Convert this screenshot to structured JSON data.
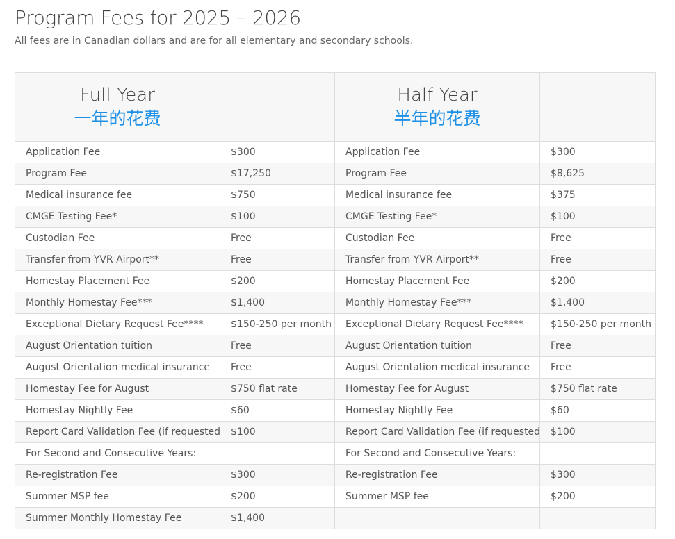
{
  "page": {
    "title": "Program Fees for 2025 – 2026",
    "subtitle": "All fees are in Canadian dollars and are for all elementary and secondary schools."
  },
  "table": {
    "full_year": {
      "title_en": "Full Year",
      "title_zh": "一年的花费"
    },
    "half_year": {
      "title_en": "Half Year",
      "title_zh": "半年的花费"
    },
    "rows": [
      {
        "full_item": "Application Fee",
        "full_amount": "$300",
        "half_item": "Application Fee",
        "half_amount": "$300"
      },
      {
        "full_item": "Program Fee",
        "full_amount": "$17,250",
        "half_item": "Program Fee",
        "half_amount": "$8,625"
      },
      {
        "full_item": "Medical insurance fee",
        "full_amount": "$750",
        "half_item": "Medical insurance fee",
        "half_amount": "$375"
      },
      {
        "full_item": "CMGE Testing Fee*",
        "full_amount": "$100",
        "half_item": "CMGE Testing Fee*",
        "half_amount": "$100"
      },
      {
        "full_item": "Custodian Fee",
        "full_amount": "Free",
        "half_item": "Custodian Fee",
        "half_amount": "Free"
      },
      {
        "full_item": "Transfer from YVR Airport**",
        "full_amount": "Free",
        "half_item": "Transfer from YVR Airport**",
        "half_amount": "Free"
      },
      {
        "full_item": "Homestay Placement Fee",
        "full_amount": "$200",
        "half_item": "Homestay Placement Fee",
        "half_amount": "$200"
      },
      {
        "full_item": "Monthly Homestay Fee***",
        "full_amount": "$1,400",
        "half_item": "Monthly Homestay Fee***",
        "half_amount": "$1,400"
      },
      {
        "full_item": "Exceptional Dietary Request Fee****",
        "full_amount": "$150-250 per month",
        "half_item": "Exceptional Dietary Request Fee****",
        "half_amount": "$150-250 per month"
      },
      {
        "full_item": "August Orientation tuition",
        "full_amount": "Free",
        "half_item": "August Orientation tuition",
        "half_amount": "Free"
      },
      {
        "full_item": "August Orientation medical insurance",
        "full_amount": "Free",
        "half_item": "August Orientation medical insurance",
        "half_amount": "Free"
      },
      {
        "full_item": "Homestay Fee for August",
        "full_amount": "$750 flat rate",
        "half_item": "Homestay Fee for August",
        "half_amount": "$750 flat rate"
      },
      {
        "full_item": "Homestay Nightly Fee",
        "full_amount": "$60",
        "half_item": "Homestay Nightly Fee",
        "half_amount": "$60"
      },
      {
        "full_item": "Report Card Validation Fee (if requested)",
        "full_amount": "$100",
        "half_item": "Report Card Validation Fee (if requested)",
        "half_amount": "$100"
      },
      {
        "full_item": "For Second and Consecutive Years:",
        "full_amount": "",
        "half_item": "For Second and Consecutive Years:",
        "half_amount": ""
      },
      {
        "full_item": "Re-registration Fee",
        "full_amount": "$300",
        "half_item": "Re-registration Fee",
        "half_amount": "$300"
      },
      {
        "full_item": "Summer MSP fee",
        "full_amount": "$200",
        "half_item": "Summer MSP fee",
        "half_amount": "$200"
      },
      {
        "full_item": "Summer Monthly Homestay Fee",
        "full_amount": "$1,400",
        "half_item": "",
        "half_amount": ""
      }
    ]
  },
  "colors": {
    "accent": "#1e90e6",
    "row_alt": "#f7f7f7",
    "border": "#dddddd"
  }
}
